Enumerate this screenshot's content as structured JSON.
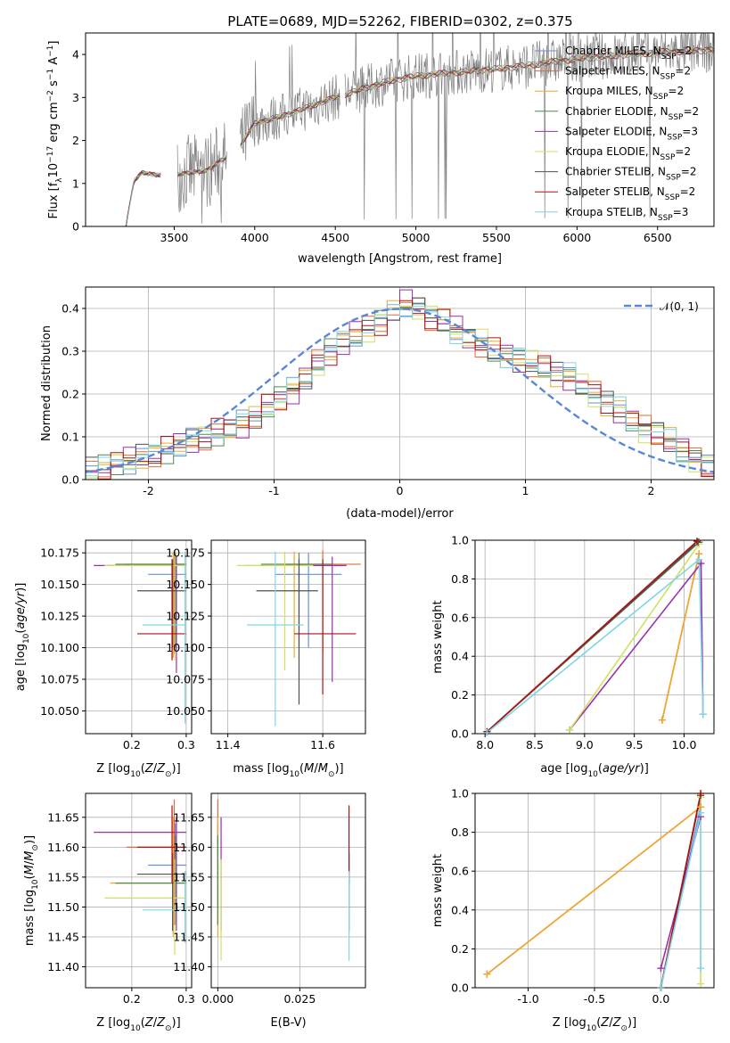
{
  "title": "PLATE=0689, MJD=52262, FIBERID=0302, z=0.375",
  "colors": {
    "series": [
      "#6a8fd6",
      "#e06a3a",
      "#f0a830",
      "#4d8c4d",
      "#9b30a8",
      "#d0e060",
      "#505050",
      "#b01010",
      "#7fd6e6"
    ],
    "gauss": "#5a87d6",
    "grid": "#b0b0b0"
  },
  "legend_spectrum": [
    "Chabrier MILES, N_SSP=2",
    "Salpeter MILES, N_SSP=2",
    "Kroupa MILES, N_SSP=2",
    "Chabrier ELODIE, N_SSP=2",
    "Salpeter ELODIE, N_SSP=3",
    "Kroupa ELODIE, N_SSP=2",
    "Chabrier STELIB, N_SSP=2",
    "Salpeter STELIB, N_SSP=2",
    "Kroupa STELIB, N_SSP=3"
  ],
  "legend_hist": "𝒩(0, 1)",
  "chart_data": [
    {
      "id": "spectrum",
      "type": "line",
      "xlabel": "wavelength [Angstrom, rest frame]",
      "ylabel": "Flux [f_λ 10^-17 erg cm^-2 s^-1 A^-1]",
      "xlim": [
        2950,
        6850
      ],
      "ylim": [
        0,
        4.5
      ],
      "xticks": [
        3500,
        4000,
        4500,
        5000,
        5500,
        6000,
        6500
      ],
      "yticks": [
        0,
        1,
        2,
        3,
        4
      ],
      "grid": false,
      "legend": "upper-right",
      "continuum": {
        "x": [
          3200,
          3250,
          3300,
          3400,
          3500,
          3700,
          3900,
          4000,
          4200,
          4500,
          4800,
          5000,
          5300,
          5600,
          6000,
          6300,
          6500,
          6800
        ],
        "y": [
          0.0,
          1.05,
          1.25,
          1.2,
          1.2,
          1.3,
          1.8,
          2.4,
          2.6,
          3.0,
          3.35,
          3.5,
          3.6,
          3.7,
          3.9,
          4.0,
          4.05,
          4.1
        ]
      }
    },
    {
      "id": "residuals",
      "type": "histogram",
      "xlabel": "(data-model)/error",
      "ylabel": "Normed distribution",
      "xlim": [
        -2.5,
        2.5
      ],
      "ylim": [
        0,
        0.45
      ],
      "xticks": [
        -2,
        -1,
        0,
        1,
        2
      ],
      "yticks": [
        0.0,
        0.1,
        0.2,
        0.3,
        0.4
      ],
      "grid": true,
      "legend": "upper-right",
      "bin_start": -2.5,
      "bin_width": 0.1,
      "base_values": [
        0.02,
        0.03,
        0.04,
        0.045,
        0.05,
        0.06,
        0.07,
        0.08,
        0.09,
        0.1,
        0.11,
        0.12,
        0.13,
        0.15,
        0.17,
        0.19,
        0.21,
        0.24,
        0.27,
        0.3,
        0.32,
        0.34,
        0.35,
        0.37,
        0.39,
        0.41,
        0.4,
        0.38,
        0.37,
        0.35,
        0.33,
        0.32,
        0.3,
        0.29,
        0.28,
        0.27,
        0.26,
        0.25,
        0.24,
        0.22,
        0.2,
        0.18,
        0.16,
        0.14,
        0.12,
        0.11,
        0.09,
        0.07,
        0.05,
        0.03
      ],
      "gaussian": {
        "mean": 0,
        "sigma": 1
      }
    },
    {
      "id": "age_vs_Z",
      "type": "errorbar",
      "xlabel": "Z [log10(Z/Z_sun)]",
      "ylabel": "age [log10(age/yr)]",
      "xlim": [
        0.115,
        0.31
      ],
      "ylim": [
        10.032,
        10.185
      ],
      "xticks": [
        0.2,
        0.3
      ],
      "yticks": [
        10.05,
        10.075,
        10.1,
        10.125,
        10.15,
        10.175
      ],
      "grid": true,
      "points": [
        {
          "x": 0.28,
          "y": 10.158,
          "xl": 0.23,
          "xh": 0.3,
          "yl": 10.1,
          "yh": 10.175
        },
        {
          "x": 0.278,
          "y": 10.166,
          "xl": 0.19,
          "xh": 0.3,
          "yl": 10.095,
          "yh": 10.177
        },
        {
          "x": 0.276,
          "y": 10.165,
          "xl": 0.16,
          "xh": 0.3,
          "yl": 10.092,
          "yh": 10.176
        },
        {
          "x": 0.28,
          "y": 10.166,
          "xl": 0.17,
          "xh": 0.3,
          "yl": 10.1,
          "yh": 10.175
        },
        {
          "x": 0.282,
          "y": 10.165,
          "xl": 0.13,
          "xh": 0.3,
          "yl": 10.08,
          "yh": 10.172
        },
        {
          "x": 0.279,
          "y": 10.165,
          "xl": 0.15,
          "xh": 0.3,
          "yl": 10.09,
          "yh": 10.176
        },
        {
          "x": 0.275,
          "y": 10.145,
          "xl": 0.21,
          "xh": 0.3,
          "yl": 10.1,
          "yh": 10.17
        },
        {
          "x": 0.274,
          "y": 10.111,
          "xl": 0.21,
          "xh": 0.3,
          "yl": 10.09,
          "yh": 10.17
        },
        {
          "x": 0.298,
          "y": 10.118,
          "xl": 0.22,
          "xh": 0.3,
          "yl": 10.04,
          "yh": 10.176
        }
      ]
    },
    {
      "id": "age_vs_mass",
      "type": "errorbar",
      "xlabel": "mass [log10(M/M_sun)]",
      "ylabel": "",
      "xlim": [
        11.365,
        11.69
      ],
      "ylim": [
        10.032,
        10.185
      ],
      "xticks": [
        11.4,
        11.6
      ],
      "yticks": [
        10.05,
        10.075,
        10.1,
        10.125,
        10.15,
        10.175
      ],
      "grid": true,
      "points": [
        {
          "x": 11.57,
          "y": 10.158,
          "xl": 11.5,
          "xh": 11.64,
          "yl": 10.1,
          "yh": 10.175
        },
        {
          "x": 11.6,
          "y": 10.166,
          "xl": 11.52,
          "xh": 11.68,
          "yl": 10.095,
          "yh": 10.177
        },
        {
          "x": 11.54,
          "y": 10.165,
          "xl": 11.44,
          "xh": 11.65,
          "yl": 10.092,
          "yh": 10.176
        },
        {
          "x": 11.55,
          "y": 10.166,
          "xl": 11.47,
          "xh": 11.62,
          "yl": 10.1,
          "yh": 10.175
        },
        {
          "x": 11.62,
          "y": 10.165,
          "xl": 11.52,
          "xh": 11.65,
          "yl": 10.073,
          "yh": 10.172
        },
        {
          "x": 11.52,
          "y": 10.165,
          "xl": 11.42,
          "xh": 11.58,
          "yl": 10.082,
          "yh": 10.176
        },
        {
          "x": 11.55,
          "y": 10.145,
          "xl": 11.46,
          "xh": 11.59,
          "yl": 10.055,
          "yh": 10.17
        },
        {
          "x": 11.6,
          "y": 10.111,
          "xl": 11.54,
          "xh": 11.67,
          "yl": 10.063,
          "yh": 10.17
        },
        {
          "x": 11.5,
          "y": 10.118,
          "xl": 11.44,
          "xh": 11.56,
          "yl": 10.038,
          "yh": 10.176
        }
      ]
    },
    {
      "id": "weight_vs_age",
      "type": "line",
      "xlabel": "age [log10(age/yr)]",
      "ylabel": "mass weight",
      "xlim": [
        7.9,
        10.3
      ],
      "ylim": [
        0,
        1
      ],
      "xticks": [
        8.0,
        8.5,
        9.0,
        9.5,
        10.0
      ],
      "yticks": [
        0.0,
        0.2,
        0.4,
        0.6,
        0.8,
        1.0
      ],
      "grid": true,
      "series": [
        {
          "x": [
            8.02,
            10.15
          ],
          "y": [
            0.01,
            0.99
          ]
        },
        {
          "x": [
            9.78,
            10.15
          ],
          "y": [
            0.07,
            0.93
          ]
        },
        {
          "x": [
            9.78,
            10.15
          ],
          "y": [
            0.07,
            0.93
          ]
        },
        {
          "x": [
            8.02,
            10.15
          ],
          "y": [
            0.01,
            0.99
          ]
        },
        {
          "x": [
            8.85,
            10.17,
            10.19
          ],
          "y": [
            0.02,
            0.88,
            0.1
          ]
        },
        {
          "x": [
            8.85,
            10.15
          ],
          "y": [
            0.02,
            0.98
          ]
        },
        {
          "x": [
            8.02,
            10.14
          ],
          "y": [
            0.01,
            0.99
          ]
        },
        {
          "x": [
            8.02,
            10.13
          ],
          "y": [
            0.01,
            0.995
          ]
        },
        {
          "x": [
            8.02,
            10.15,
            10.19
          ],
          "y": [
            0.005,
            0.9,
            0.1
          ]
        }
      ]
    },
    {
      "id": "mass_vs_Z",
      "type": "errorbar",
      "xlabel": "Z [log10(Z/Z_sun)]",
      "ylabel": "mass [log10(M/M_sun)]",
      "xlim": [
        0.115,
        0.31
      ],
      "ylim": [
        11.365,
        11.69
      ],
      "xticks": [
        0.2,
        0.3
      ],
      "yticks": [
        11.4,
        11.45,
        11.5,
        11.55,
        11.6,
        11.65
      ],
      "grid": true,
      "points": [
        {
          "x": 0.28,
          "y": 11.57,
          "xl": 0.23,
          "xh": 0.3,
          "yl": 11.5,
          "yh": 11.64
        },
        {
          "x": 0.278,
          "y": 11.6,
          "xl": 0.19,
          "xh": 0.3,
          "yl": 11.47,
          "yh": 11.68
        },
        {
          "x": 0.276,
          "y": 11.54,
          "xl": 0.16,
          "xh": 0.3,
          "yl": 11.45,
          "yh": 11.65
        },
        {
          "x": 0.28,
          "y": 11.54,
          "xl": 0.17,
          "xh": 0.3,
          "yl": 11.47,
          "yh": 11.62
        },
        {
          "x": 0.282,
          "y": 11.625,
          "xl": 0.13,
          "xh": 0.3,
          "yl": 11.46,
          "yh": 11.65
        },
        {
          "x": 0.279,
          "y": 11.515,
          "xl": 0.15,
          "xh": 0.3,
          "yl": 11.42,
          "yh": 11.58
        },
        {
          "x": 0.275,
          "y": 11.555,
          "xl": 0.21,
          "xh": 0.3,
          "yl": 11.46,
          "yh": 11.59
        },
        {
          "x": 0.274,
          "y": 11.6,
          "xl": 0.21,
          "xh": 0.3,
          "yl": 11.54,
          "yh": 11.67
        },
        {
          "x": 0.298,
          "y": 11.495,
          "xl": 0.22,
          "xh": 0.3,
          "yl": 11.44,
          "yh": 11.56
        }
      ]
    },
    {
      "id": "mass_vs_EBV",
      "type": "errorbar",
      "xlabel": "E(B-V)",
      "ylabel": "",
      "xlim": [
        -0.002,
        0.045
      ],
      "ylim": [
        11.365,
        11.69
      ],
      "xticks": [
        0.0,
        0.025
      ],
      "yticks": [
        11.4,
        11.45,
        11.5,
        11.55,
        11.6,
        11.65
      ],
      "grid": true,
      "points": [
        {
          "x": 0.0,
          "y": 11.57,
          "yl": 11.5,
          "yh": 11.64
        },
        {
          "x": 0.0,
          "y": 11.6,
          "yl": 11.47,
          "yh": 11.68
        },
        {
          "x": 0.0,
          "y": 11.54,
          "yl": 11.45,
          "yh": 11.65
        },
        {
          "x": 0.0,
          "y": 11.54,
          "yl": 11.47,
          "yh": 11.62
        },
        {
          "x": 0.001,
          "y": 11.625,
          "yl": 11.46,
          "yh": 11.65
        },
        {
          "x": 0.001,
          "y": 11.515,
          "yl": 11.41,
          "yh": 11.58
        },
        {
          "x": 0.04,
          "y": 11.555,
          "yl": 11.46,
          "yh": 11.59
        },
        {
          "x": 0.04,
          "y": 11.6,
          "yl": 11.54,
          "yh": 11.67
        },
        {
          "x": 0.04,
          "y": 11.495,
          "yl": 11.41,
          "yh": 11.56
        }
      ]
    },
    {
      "id": "weight_vs_Z",
      "type": "line",
      "xlabel": "Z [log10(Z/Z_sun)]",
      "ylabel": "mass weight",
      "xlim": [
        -1.4,
        0.4
      ],
      "ylim": [
        0,
        1
      ],
      "xticks": [
        -1.0,
        -0.5,
        0.0
      ],
      "yticks": [
        0.0,
        0.2,
        0.4,
        0.6,
        0.8,
        1.0
      ],
      "grid": true,
      "series": [
        {
          "x": [
            0.0,
            0.3
          ],
          "y": [
            0.0,
            0.93
          ]
        },
        {
          "x": [
            -1.31,
            0.3
          ],
          "y": [
            0.07,
            0.93
          ]
        },
        {
          "x": [
            -1.31,
            0.3
          ],
          "y": [
            0.07,
            0.93
          ]
        },
        {
          "x": [
            0.0,
            0.3
          ],
          "y": [
            0.0,
            0.99
          ]
        },
        {
          "x": [
            0.0,
            0.3
          ],
          "y": [
            0.1,
            0.88
          ]
        },
        {
          "x": [
            0.3,
            0.3
          ],
          "y": [
            0.02,
            0.98
          ]
        },
        {
          "x": [
            0.0,
            0.3
          ],
          "y": [
            0.0,
            0.99
          ]
        },
        {
          "x": [
            0.0,
            0.3
          ],
          "y": [
            0.0,
            1.0
          ]
        },
        {
          "x": [
            0.0,
            0.3,
            0.3
          ],
          "y": [
            0.0,
            0.9,
            0.1
          ]
        }
      ]
    }
  ]
}
